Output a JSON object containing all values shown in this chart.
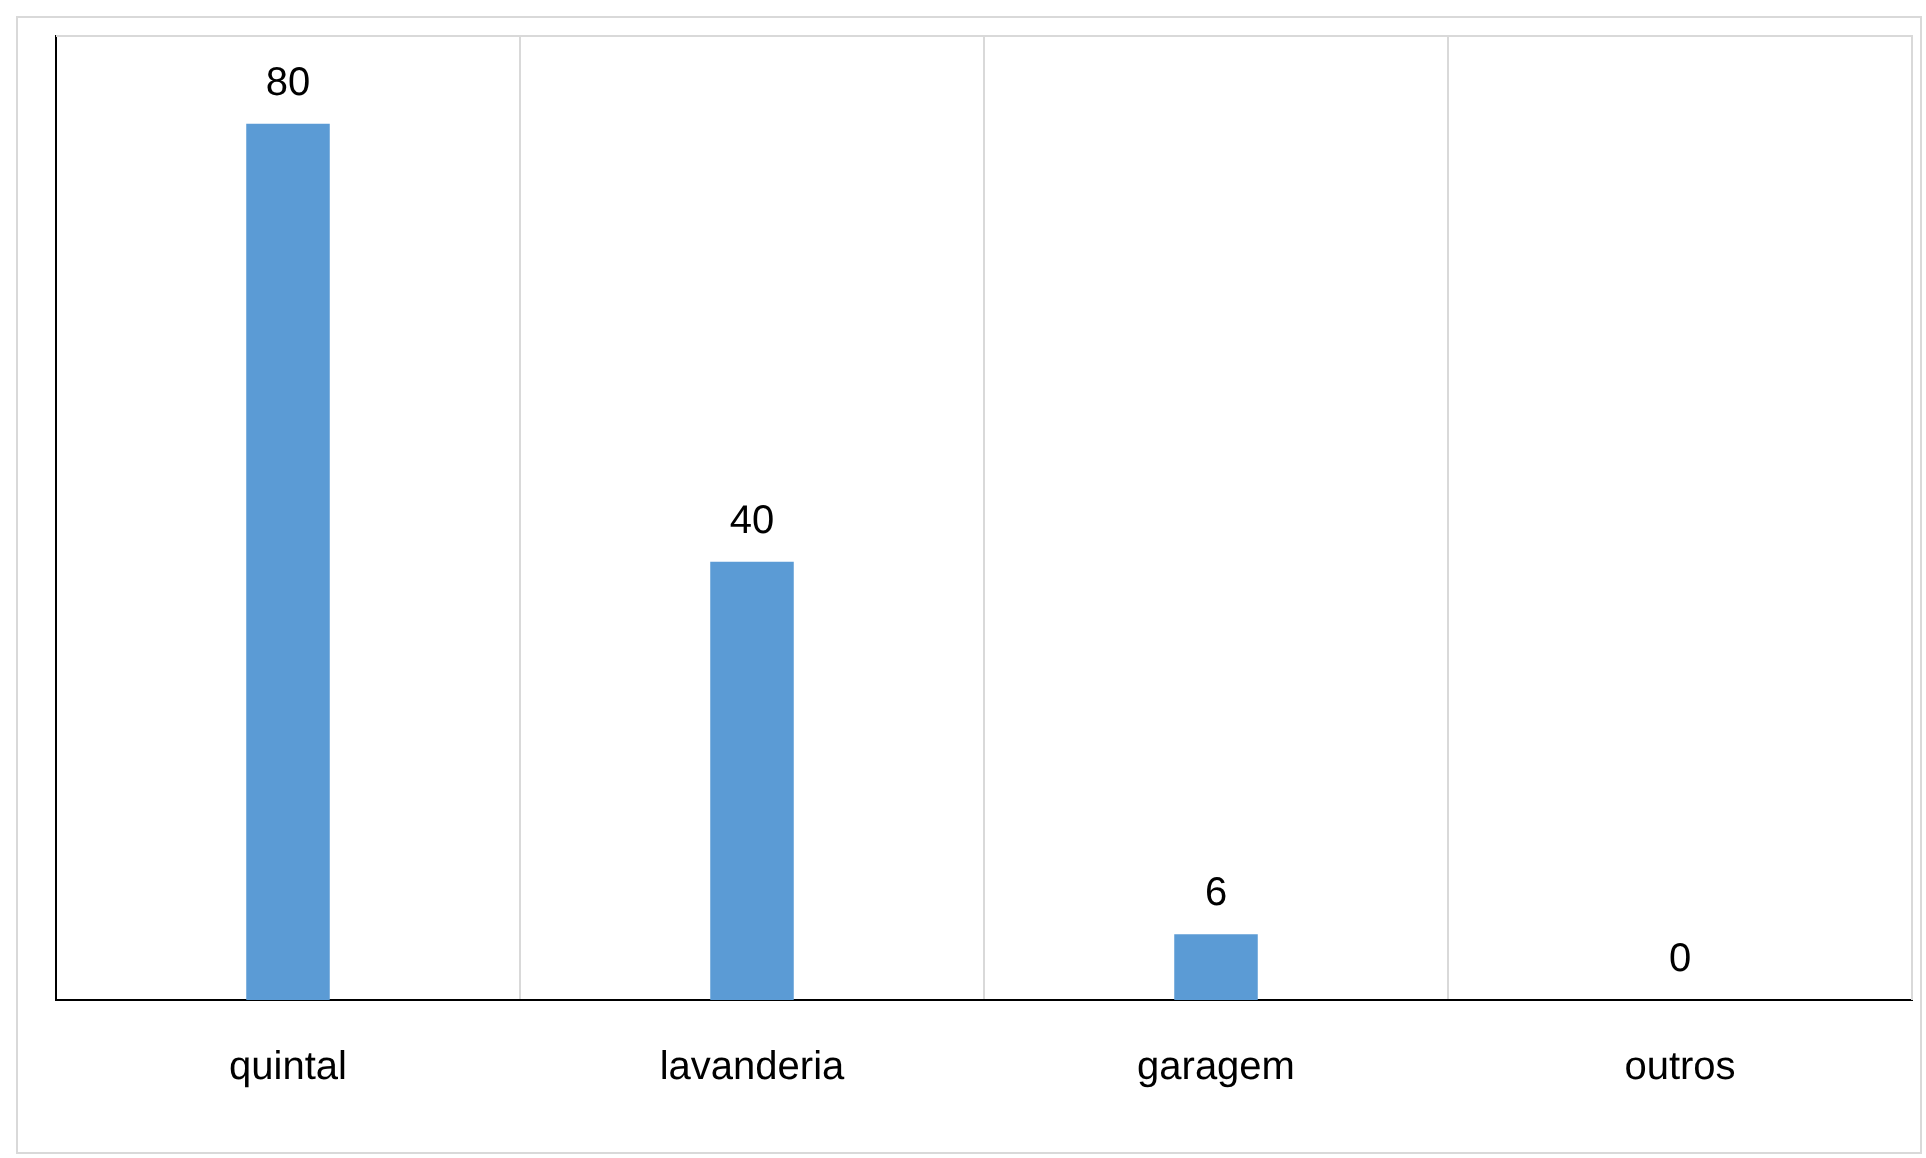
{
  "chart_data": {
    "type": "bar",
    "categories": [
      "quintal",
      "lavanderia",
      "garagem",
      "outros"
    ],
    "values": [
      80,
      40,
      6,
      0
    ],
    "color": "#5b9bd5",
    "ylim": [
      0,
      88
    ],
    "grid": "x",
    "tick_labels": "x",
    "data_labels": true,
    "legend": false
  }
}
